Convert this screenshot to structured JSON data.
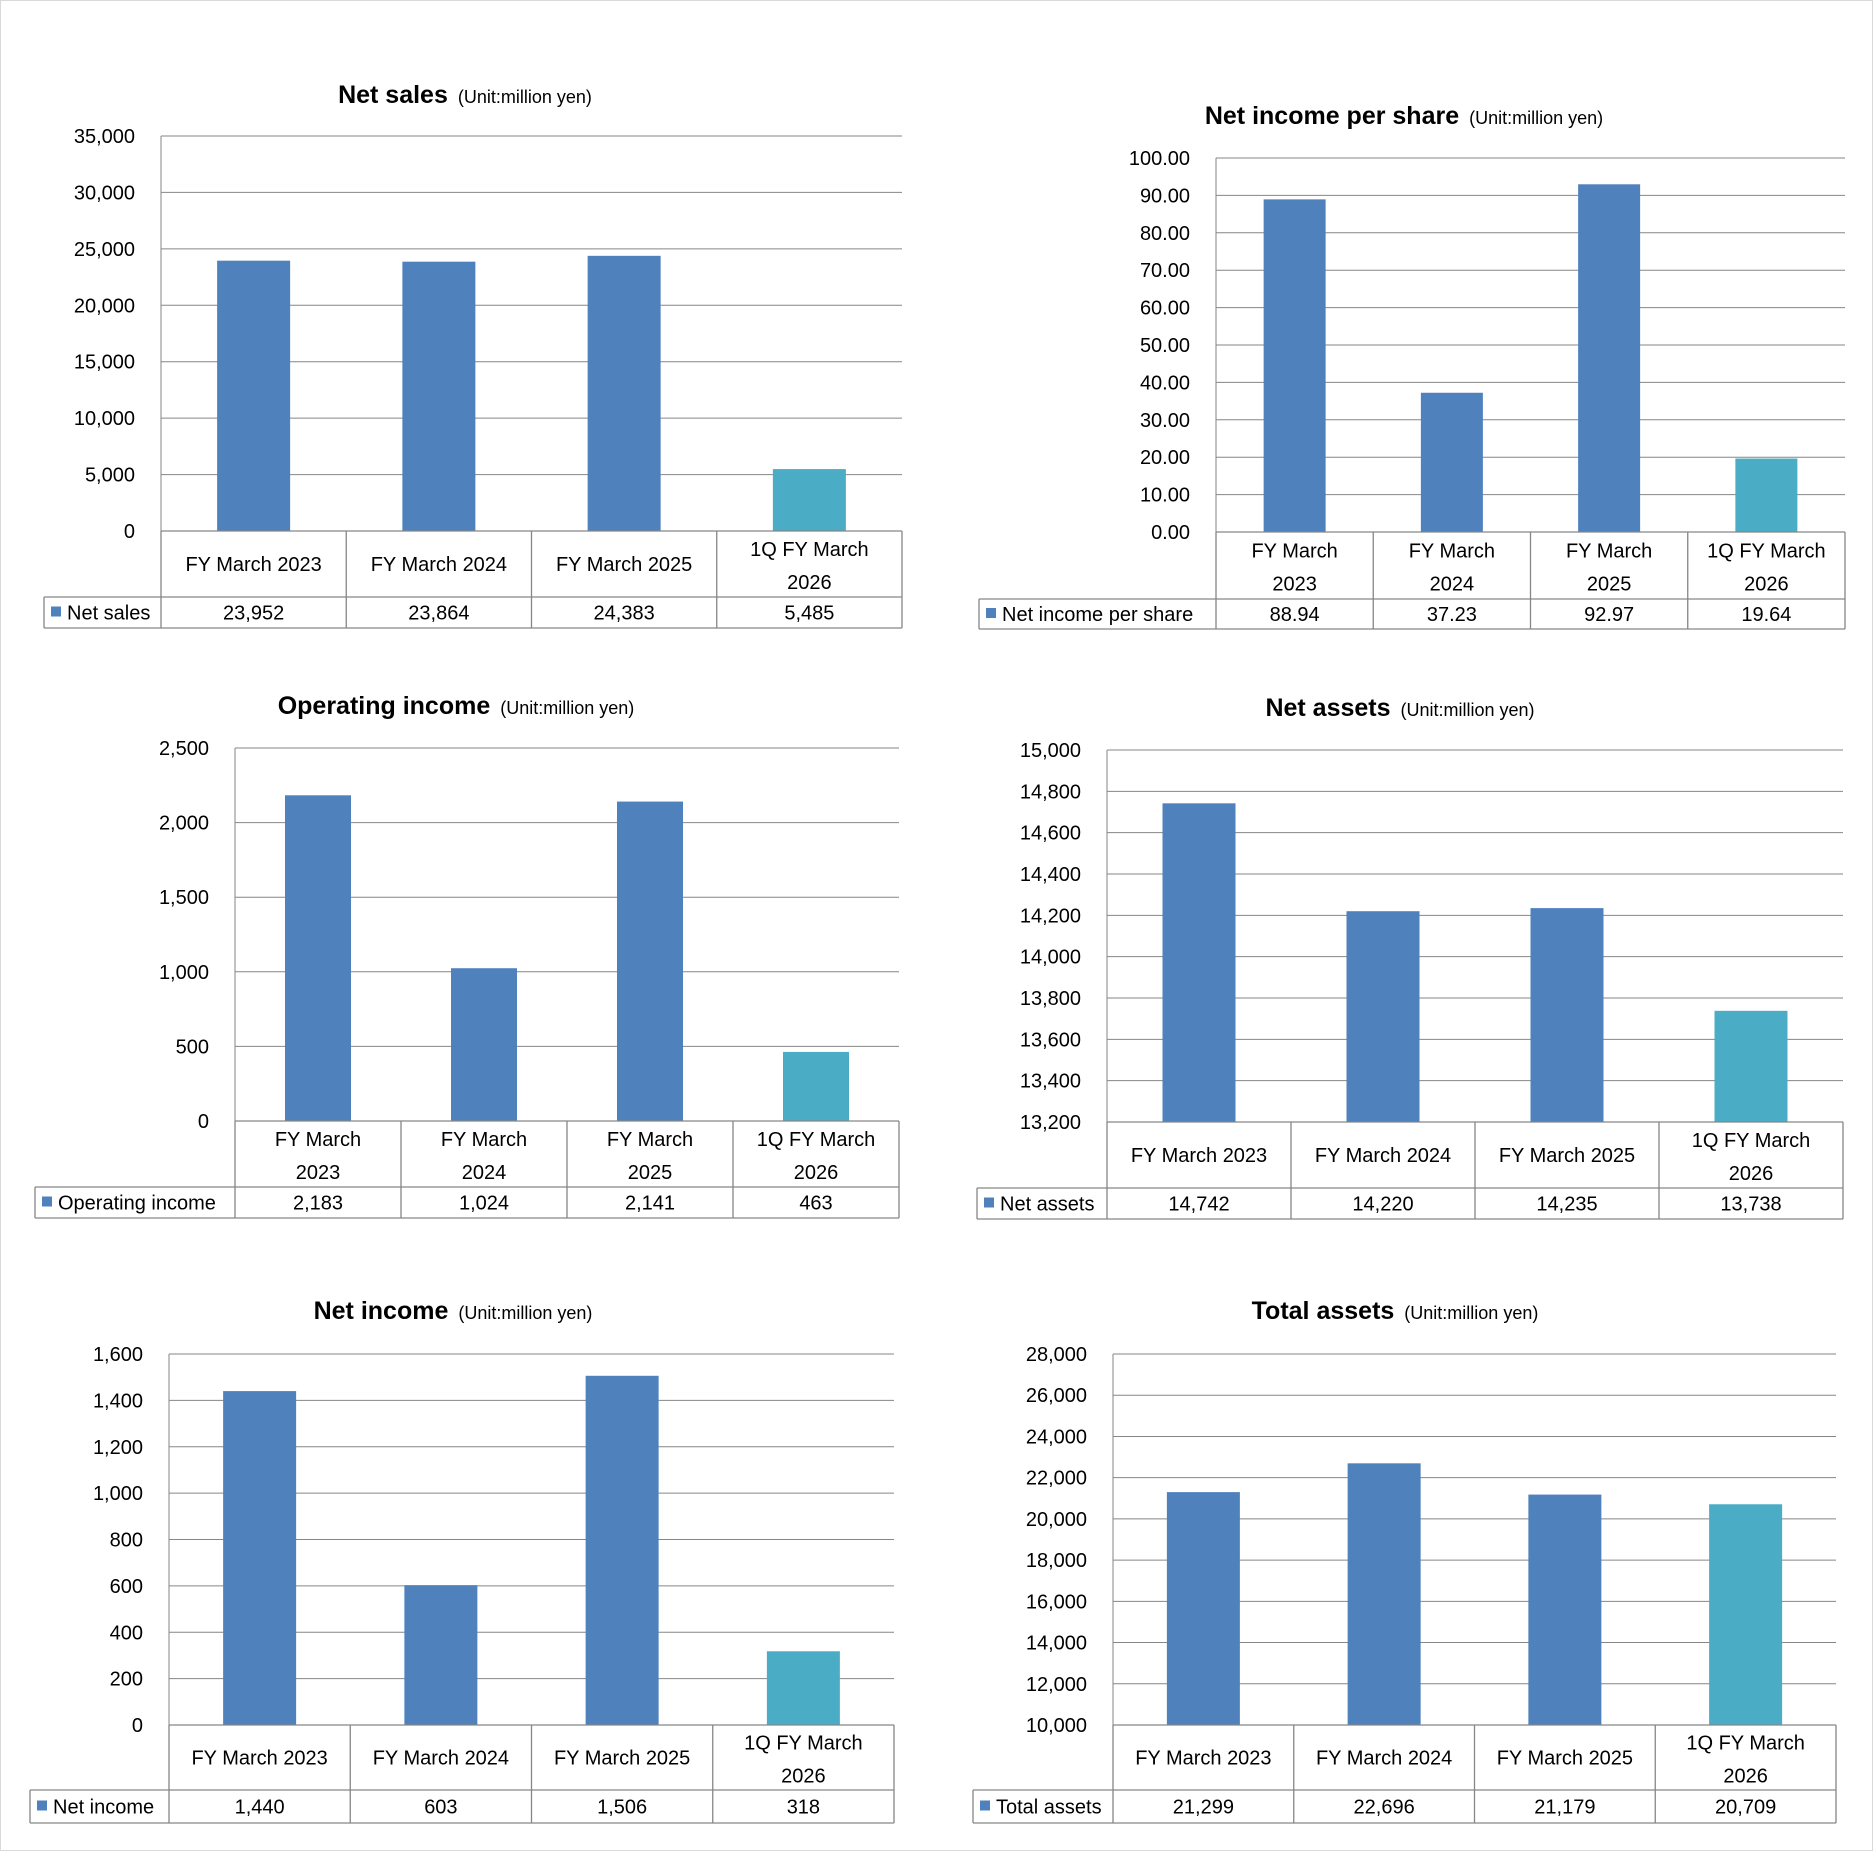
{
  "colors": {
    "bar": "#4f81bd",
    "bar_highlight": "#4bacc6",
    "grid": "#868686",
    "table_border": "#868686",
    "text": "#000000"
  },
  "chart_data": [
    {
      "type": "bar",
      "title": "Net sales",
      "unit": "(Unit:million yen)",
      "categories": [
        "FY March 2023",
        "FY March 2024",
        "FY March 2025",
        "1Q FY March 2026"
      ],
      "series": [
        {
          "name": "Net sales",
          "values": [
            23952,
            23864,
            24383,
            5485
          ]
        }
      ],
      "value_labels": [
        "23,952",
        "23,864",
        "24,383",
        "5,485"
      ],
      "ylim": [
        0,
        35000
      ],
      "yticks": [
        "0",
        "5,000",
        "10,000",
        "15,000",
        "20,000",
        "25,000",
        "30,000",
        "35,000"
      ],
      "highlight_last": true,
      "grid": true,
      "legend": "data-table"
    },
    {
      "type": "bar",
      "title": "Net income per share",
      "unit": "(Unit:million yen)",
      "categories": [
        "FY March 2023",
        "FY March 2024",
        "FY March 2025",
        "1Q FY March 2026"
      ],
      "series": [
        {
          "name": "Net income per share",
          "values": [
            88.94,
            37.23,
            92.97,
            19.64
          ]
        }
      ],
      "value_labels": [
        "88.94",
        "37.23",
        "92.97",
        "19.64"
      ],
      "ylim": [
        0,
        100
      ],
      "yticks": [
        "0.00",
        "10.00",
        "20.00",
        "30.00",
        "40.00",
        "50.00",
        "60.00",
        "70.00",
        "80.00",
        "90.00",
        "100.00"
      ],
      "highlight_last": true,
      "grid": true,
      "legend": "data-table"
    },
    {
      "type": "bar",
      "title": "Operating income",
      "unit": "(Unit:million yen)",
      "categories": [
        "FY March 2023",
        "FY March 2024",
        "FY March 2025",
        "1Q FY March 2026"
      ],
      "series": [
        {
          "name": "Operating income",
          "values": [
            2183,
            1024,
            2141,
            463
          ]
        }
      ],
      "value_labels": [
        "2,183",
        "1,024",
        "2,141",
        "463"
      ],
      "ylim": [
        0,
        2500
      ],
      "yticks": [
        "0",
        "500",
        "1,000",
        "1,500",
        "2,000",
        "2,500"
      ],
      "highlight_last": true,
      "grid": true,
      "legend": "data-table"
    },
    {
      "type": "bar",
      "title": "Net assets",
      "unit": "(Unit:million yen)",
      "categories": [
        "FY March 2023",
        "FY March 2024",
        "FY March 2025",
        "1Q FY March 2026"
      ],
      "series": [
        {
          "name": "Net assets",
          "values": [
            14742,
            14220,
            14235,
            13738
          ]
        }
      ],
      "value_labels": [
        "14,742",
        "14,220",
        "14,235",
        "13,738"
      ],
      "ylim": [
        13200,
        15000
      ],
      "yticks": [
        "13,200",
        "13,400",
        "13,600",
        "13,800",
        "14,000",
        "14,200",
        "14,400",
        "14,600",
        "14,800",
        "15,000"
      ],
      "highlight_last": true,
      "grid": true,
      "legend": "data-table"
    },
    {
      "type": "bar",
      "title": "Net income",
      "unit": "(Unit:million yen)",
      "categories": [
        "FY March 2023",
        "FY March 2024",
        "FY March 2025",
        "1Q FY March 2026"
      ],
      "series": [
        {
          "name": "Net income",
          "values": [
            1440,
            603,
            1506,
            318
          ]
        }
      ],
      "value_labels": [
        "1,440",
        "603",
        "1,506",
        "318"
      ],
      "ylim": [
        0,
        1600
      ],
      "yticks": [
        "0",
        "200",
        "400",
        "600",
        "800",
        "1,000",
        "1,200",
        "1,400",
        "1,600"
      ],
      "highlight_last": true,
      "grid": true,
      "legend": "data-table"
    },
    {
      "type": "bar",
      "title": "Total assets",
      "unit": "(Unit:million yen)",
      "categories": [
        "FY March 2023",
        "FY March 2024",
        "FY March 2025",
        "1Q FY March 2026"
      ],
      "series": [
        {
          "name": "Total assets",
          "values": [
            21299,
            22696,
            21179,
            20709
          ]
        }
      ],
      "value_labels": [
        "21,299",
        "22,696",
        "21,179",
        "20,709"
      ],
      "ylim": [
        10000,
        28000
      ],
      "yticks": [
        "10,000",
        "12,000",
        "14,000",
        "16,000",
        "18,000",
        "20,000",
        "22,000",
        "24,000",
        "26,000",
        "28,000"
      ],
      "highlight_last": true,
      "grid": true,
      "legend": "data-table"
    }
  ]
}
